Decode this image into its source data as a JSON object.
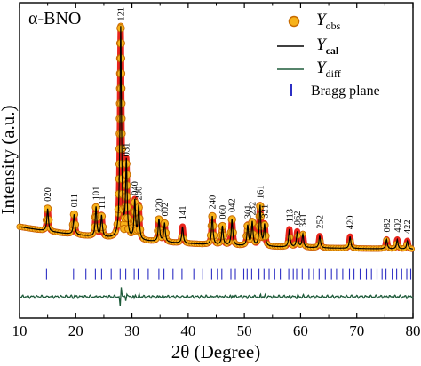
{
  "chart_data": {
    "type": "line",
    "panel_label": "α-BNO",
    "xlabel": "2θ (Degree)",
    "ylabel": "Intensity (a.u.)",
    "xlim": [
      10,
      80
    ],
    "xticks": [
      "10",
      "20",
      "30",
      "40",
      "50",
      "60",
      "70",
      "80"
    ],
    "xtick_values": [
      10,
      20,
      30,
      40,
      50,
      60,
      70,
      80
    ],
    "ylim": [
      -0.25,
      1.08
    ],
    "y_ticks_labeled": false,
    "legend_position": "top-right",
    "legend": [
      {
        "id": "obs",
        "main": "Y",
        "sub": "obs",
        "marker": "circle-orange"
      },
      {
        "id": "cal",
        "main": "Y",
        "sub": "cal",
        "marker": "line-black"
      },
      {
        "id": "diff",
        "main": "Y",
        "sub": "diff",
        "marker": "line-green"
      },
      {
        "id": "bragg",
        "label": "Bragg plane",
        "marker": "tick-blue"
      }
    ],
    "colors": {
      "obs_fill": "#F7B21A",
      "obs_edge": "#C76A00",
      "obs_thick": "#E8251C",
      "cal": "#000000",
      "diff": "#1E5B3A",
      "bragg": "#2D2FC4"
    },
    "series_style": {
      "background_start": 0.135,
      "background_end": 0.035,
      "background_decay": 24,
      "peak_width": 0.16,
      "diff_baseline": -0.16,
      "bragg_baseline": -0.065
    },
    "peaks": [
      {
        "x": 15.0,
        "height": 0.095,
        "label": "020"
      },
      {
        "x": 19.7,
        "height": 0.085,
        "label": "011"
      },
      {
        "x": 23.6,
        "height": 0.125,
        "label": "101"
      },
      {
        "x": 24.6,
        "height": 0.09,
        "label": "111"
      },
      {
        "x": 28.0,
        "height": 0.89,
        "label": "121"
      },
      {
        "x": 29.0,
        "height": 0.32,
        "label": "031"
      },
      {
        "x": 30.5,
        "height": 0.16,
        "label": "040"
      },
      {
        "x": 31.2,
        "height": 0.14,
        "label": "200"
      },
      {
        "x": 34.8,
        "height": 0.095,
        "label": "220"
      },
      {
        "x": 35.8,
        "height": 0.08,
        "label": "002"
      },
      {
        "x": 39.0,
        "height": 0.07,
        "label": "141"
      },
      {
        "x": 44.3,
        "height": 0.12,
        "label": "240"
      },
      {
        "x": 46.1,
        "height": 0.08,
        "label": "060"
      },
      {
        "x": 47.8,
        "height": 0.11,
        "label": "042"
      },
      {
        "x": 50.6,
        "height": 0.085,
        "label": "301"
      },
      {
        "x": 51.4,
        "height": 0.1,
        "label": "232"
      },
      {
        "x": 52.8,
        "height": 0.17,
        "label": "161"
      },
      {
        "x": 53.6,
        "height": 0.09,
        "label": "321"
      },
      {
        "x": 58.0,
        "height": 0.075,
        "label": "113"
      },
      {
        "x": 59.4,
        "height": 0.065,
        "label": "062"
      },
      {
        "x": 60.4,
        "height": 0.055,
        "label": "341"
      },
      {
        "x": 63.4,
        "height": 0.05,
        "label": "252"
      },
      {
        "x": 68.8,
        "height": 0.05,
        "label": "420"
      },
      {
        "x": 75.3,
        "height": 0.04,
        "label": "082"
      },
      {
        "x": 77.2,
        "height": 0.04,
        "label": "402"
      },
      {
        "x": 79.0,
        "height": 0.035,
        "label": "422"
      }
    ],
    "bragg_positions": [
      14.8,
      19.6,
      21.8,
      23.5,
      24.6,
      26.3,
      27.9,
      28.9,
      30.4,
      31.1,
      32.9,
      34.8,
      35.7,
      37.3,
      38.9,
      41.0,
      42.6,
      44.2,
      45.2,
      46.0,
      47.6,
      48.4,
      49.9,
      50.5,
      51.3,
      52.6,
      53.5,
      54.4,
      55.4,
      56.4,
      57.9,
      58.7,
      59.3,
      60.3,
      61.5,
      62.3,
      63.3,
      64.4,
      65.5,
      66.4,
      67.5,
      68.7,
      69.5,
      70.6,
      71.7,
      72.6,
      73.6,
      74.5,
      75.2,
      76.3,
      77.1,
      78.0,
      78.9,
      79.6
    ]
  }
}
